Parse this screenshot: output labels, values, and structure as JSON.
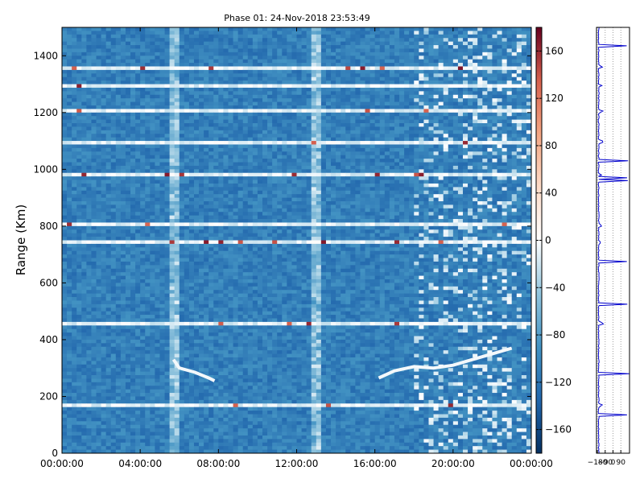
{
  "chart_data": [
    {
      "type": "heatmap",
      "title": "Phase 01: 24-Nov-2018 23:53:49",
      "xlabel": "",
      "ylabel": "Range (Km)",
      "x_ticks": [
        "00:00:00",
        "04:00:00",
        "08:00:00",
        "12:00:00",
        "16:00:00",
        "20:00:00",
        "00:00:00"
      ],
      "xlim_hours": [
        0,
        24
      ],
      "y_ticks": [
        0,
        200,
        400,
        600,
        800,
        1000,
        1200,
        1400
      ],
      "ylim": [
        0,
        1500
      ],
      "colorbar": {
        "range": [
          -180,
          180
        ],
        "ticks": [
          160,
          120,
          80,
          40,
          0,
          -40,
          -80,
          -120,
          -160
        ],
        "colormap": "RdBu_r",
        "colors": [
          "#053061",
          "#2166ac",
          "#4393c3",
          "#92c5de",
          "#ffffff",
          "#fddbc7",
          "#f4a582",
          "#d6604d",
          "#67001f"
        ]
      },
      "background_value": -110,
      "white_bands_km": [
        1362,
        1296,
        1202,
        1098,
        980,
        802,
        742,
        458,
        168
      ],
      "feature_lines": [
        {
          "name": "",
          "points": [
            [
              5.7,
              330
            ],
            [
              6.0,
              300
            ],
            [
              6.8,
              285
            ],
            [
              7.5,
              265
            ],
            [
              7.8,
              255
            ]
          ]
        },
        {
          "name": "",
          "points": [
            [
              16.2,
              265
            ],
            [
              17.0,
              290
            ],
            [
              18.0,
              305
            ],
            [
              19.0,
              300
            ],
            [
              20.0,
              310
            ],
            [
              21.0,
              330
            ],
            [
              22.0,
              350
            ],
            [
              23.0,
              370
            ]
          ]
        }
      ],
      "grid": false
    },
    {
      "type": "line",
      "title": "",
      "x_ticks": [
        -180,
        -90,
        0,
        90
      ],
      "xlim": [
        -190,
        190
      ],
      "ylim": [
        0,
        1500
      ],
      "color": "#0000cc",
      "profile_base_value": -170
    }
  ]
}
